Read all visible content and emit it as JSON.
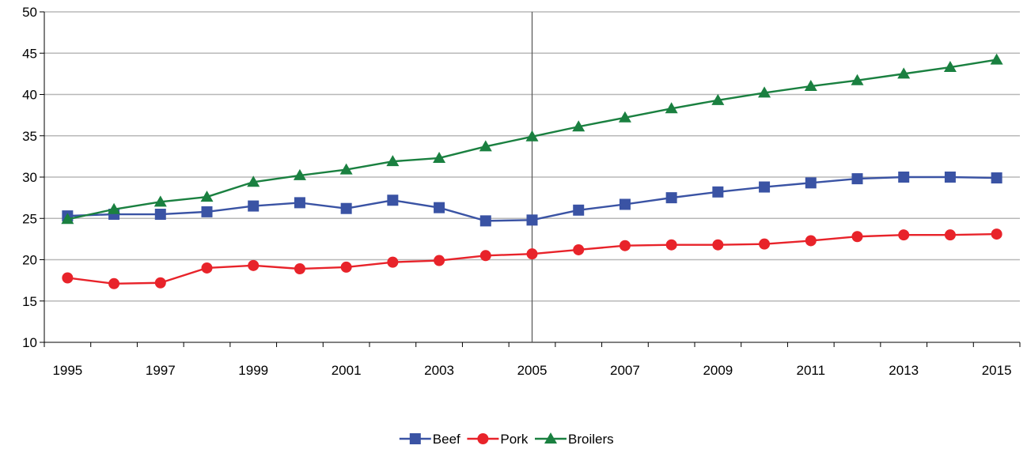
{
  "chart_data": {
    "type": "line",
    "x": [
      1995,
      1996,
      1997,
      1998,
      1999,
      2000,
      2001,
      2002,
      2003,
      2004,
      2005,
      2006,
      2007,
      2008,
      2009,
      2010,
      2011,
      2012,
      2013,
      2014,
      2015
    ],
    "x_tick_labels": [
      "1995",
      "1997",
      "1999",
      "2001",
      "2003",
      "2005",
      "2007",
      "2009",
      "2011",
      "2013",
      "2015"
    ],
    "y_tick_labels": [
      "10",
      "15",
      "20",
      "25",
      "30",
      "35",
      "40",
      "45",
      "50"
    ],
    "ylim": [
      10,
      50
    ],
    "xlabel": "",
    "ylabel": "",
    "title": "",
    "grid": "horizontal",
    "reference_line_x": 2005,
    "legend_position": "bottom-center",
    "series": [
      {
        "name": "Beef",
        "color": "#3a53a4",
        "marker": "square",
        "values": [
          25.3,
          25.5,
          25.5,
          25.8,
          26.5,
          26.9,
          26.2,
          27.2,
          26.3,
          24.7,
          24.8,
          26.0,
          26.7,
          27.5,
          28.2,
          28.8,
          29.3,
          29.8,
          30.0,
          30.0,
          29.9
        ]
      },
      {
        "name": "Pork",
        "color": "#e8232a",
        "marker": "circle",
        "values": [
          17.8,
          17.1,
          17.2,
          19.0,
          19.3,
          18.9,
          19.1,
          19.7,
          19.9,
          20.5,
          20.7,
          21.2,
          21.7,
          21.8,
          21.8,
          21.9,
          22.3,
          22.8,
          23.0,
          23.0,
          23.1
        ]
      },
      {
        "name": "Broilers",
        "color": "#1a8040",
        "marker": "triangle",
        "values": [
          24.9,
          26.1,
          27.0,
          27.6,
          29.4,
          30.2,
          30.9,
          31.9,
          32.3,
          33.7,
          34.9,
          36.1,
          37.2,
          38.3,
          39.3,
          40.2,
          41.0,
          41.7,
          42.5,
          43.3,
          44.2
        ]
      }
    ]
  }
}
